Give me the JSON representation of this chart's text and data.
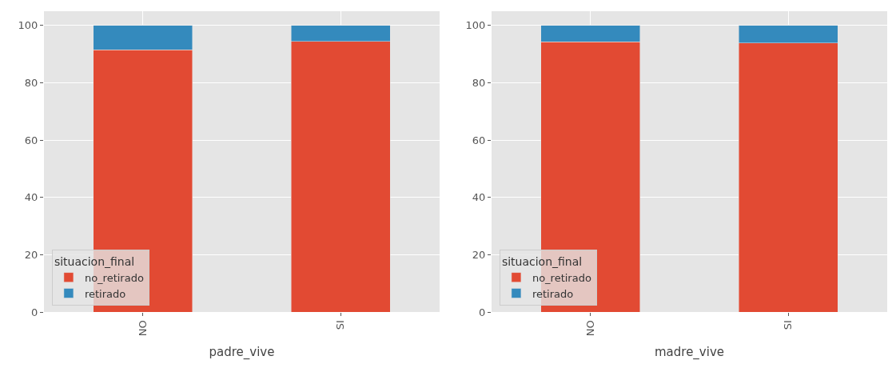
{
  "chart_data": [
    {
      "type": "bar",
      "stacked": true,
      "xlabel": "padre_vive",
      "categories": [
        "NO",
        "SI"
      ],
      "legend_title": "situacion_final",
      "legend": "bottom left",
      "grid": true,
      "ylim": [
        0,
        105
      ],
      "yticks": [
        0,
        20,
        40,
        60,
        80,
        100
      ],
      "series": [
        {
          "name": "no_retirado",
          "color": "#e24a33",
          "values": [
            91.5,
            94.4
          ]
        },
        {
          "name": "retirado",
          "color": "#348abd",
          "values": [
            8.5,
            5.6
          ]
        }
      ]
    },
    {
      "type": "bar",
      "stacked": true,
      "xlabel": "madre_vive",
      "categories": [
        "NO",
        "SI"
      ],
      "legend_title": "situacion_final",
      "legend": "bottom left",
      "grid": true,
      "ylim": [
        0,
        105
      ],
      "yticks": [
        0,
        20,
        40,
        60,
        80,
        100
      ],
      "series": [
        {
          "name": "no_retirado",
          "color": "#e24a33",
          "values": [
            94.3,
            93.9
          ]
        },
        {
          "name": "retirado",
          "color": "#348abd",
          "values": [
            5.7,
            6.1
          ]
        }
      ]
    }
  ]
}
